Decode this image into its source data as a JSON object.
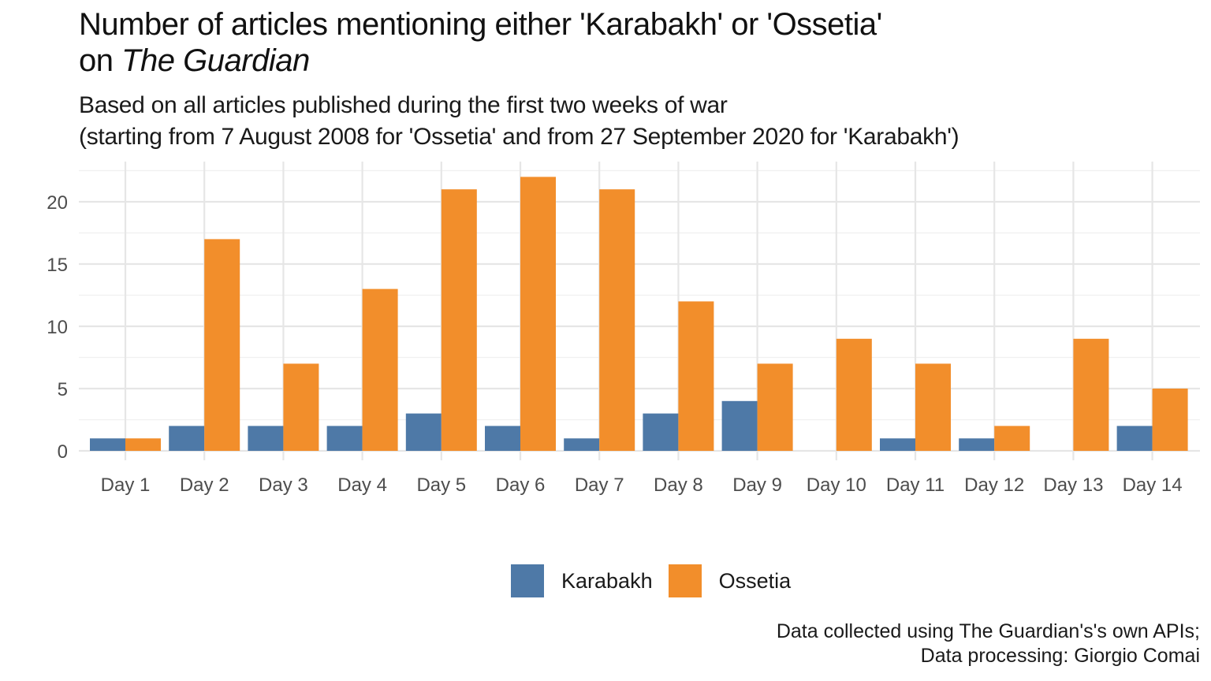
{
  "chart_data": {
    "type": "bar",
    "title_part1": "Number of articles mentioning either 'Karabakh' or 'Ossetia'",
    "title_part2_prefix": "on ",
    "title_part2_italic": "The Guardian",
    "subtitle_line1": "Based on all articles published during the first two weeks of war",
    "subtitle_line2": "(starting from 7 August 2008 for 'Ossetia' and from 27 September 2020 for 'Karabakh')",
    "caption_line1": "Data collected using The Guardian's's own APIs;",
    "caption_line2": "Data processing: Giorgio Comai",
    "xlabel": "",
    "ylabel": "",
    "ylim": [
      0,
      23
    ],
    "yticks": [
      0,
      5,
      10,
      15,
      20
    ],
    "grid": true,
    "legend_position": "bottom",
    "categories": [
      "Day 1",
      "Day 2",
      "Day 3",
      "Day 4",
      "Day 5",
      "Day 6",
      "Day 7",
      "Day 8",
      "Day 9",
      "Day 10",
      "Day 11",
      "Day 12",
      "Day 13",
      "Day 14"
    ],
    "series": [
      {
        "name": "Karabakh",
        "color": "#4e79a7",
        "values": [
          1,
          2,
          2,
          2,
          3,
          2,
          1,
          3,
          4,
          0,
          1,
          1,
          0,
          2
        ]
      },
      {
        "name": "Ossetia",
        "color": "#f28e2b",
        "values": [
          1,
          17,
          7,
          13,
          21,
          22,
          21,
          12,
          7,
          9,
          7,
          2,
          9,
          5
        ]
      }
    ]
  }
}
